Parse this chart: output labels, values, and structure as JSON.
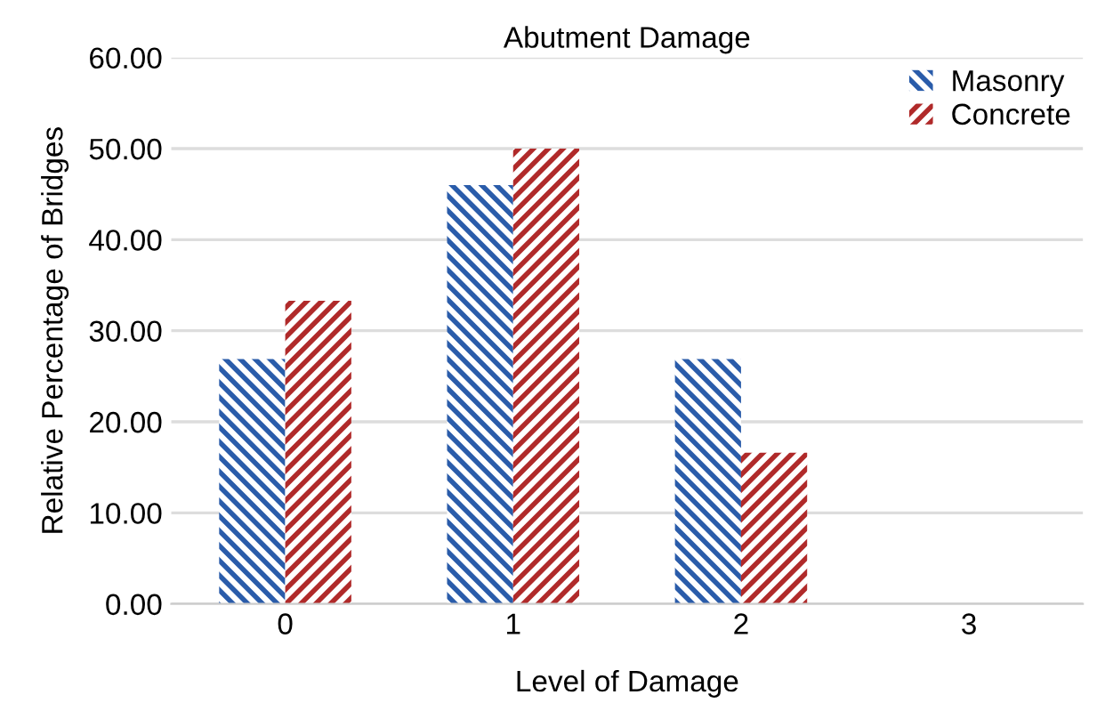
{
  "chart_data": {
    "type": "bar",
    "title": "Abutment Damage",
    "xlabel": "Level of Damage",
    "ylabel": "Relative Percentage of Bridges",
    "categories": [
      "0",
      "1",
      "2",
      "3"
    ],
    "series": [
      {
        "name": "Masonry",
        "color": "#2a5caa",
        "values": [
          26.9,
          46.0,
          26.9,
          0
        ]
      },
      {
        "name": "Concrete",
        "color": "#b02a2a",
        "values": [
          33.3,
          50.0,
          16.6,
          0
        ]
      }
    ],
    "ylim": [
      0,
      60
    ],
    "yticks": [
      {
        "value": 0,
        "label": "0.00"
      },
      {
        "value": 10,
        "label": "10.00"
      },
      {
        "value": 20,
        "label": "20.00"
      },
      {
        "value": 30,
        "label": "30.00"
      },
      {
        "value": 40,
        "label": "40.00"
      },
      {
        "value": 50,
        "label": "50.00"
      },
      {
        "value": 60,
        "label": "60.00"
      }
    ],
    "grid": "y",
    "legend": "top right"
  }
}
